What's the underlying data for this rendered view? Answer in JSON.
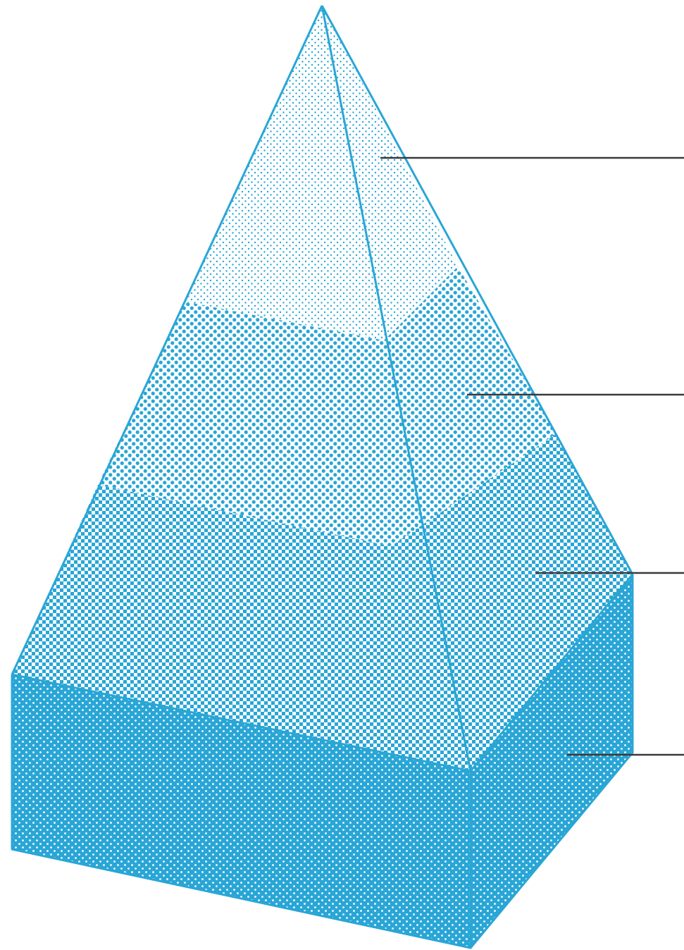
{
  "diagram": {
    "colors": {
      "primary_blue": "#29a6d6",
      "callout_line": "#3a3a3a",
      "background": "#ffffff"
    },
    "layers": [
      {
        "name": "apex",
        "texture": "fine-dots"
      },
      {
        "name": "upper-middle",
        "texture": "medium-dots"
      },
      {
        "name": "lower-middle",
        "texture": "checker"
      },
      {
        "name": "base",
        "texture": "solid-with-white-dots"
      }
    ],
    "callouts": [
      {
        "target": "apex",
        "label": ""
      },
      {
        "target": "upper-middle",
        "label": ""
      },
      {
        "target": "lower-middle",
        "label": ""
      },
      {
        "target": "base",
        "label": ""
      }
    ]
  }
}
